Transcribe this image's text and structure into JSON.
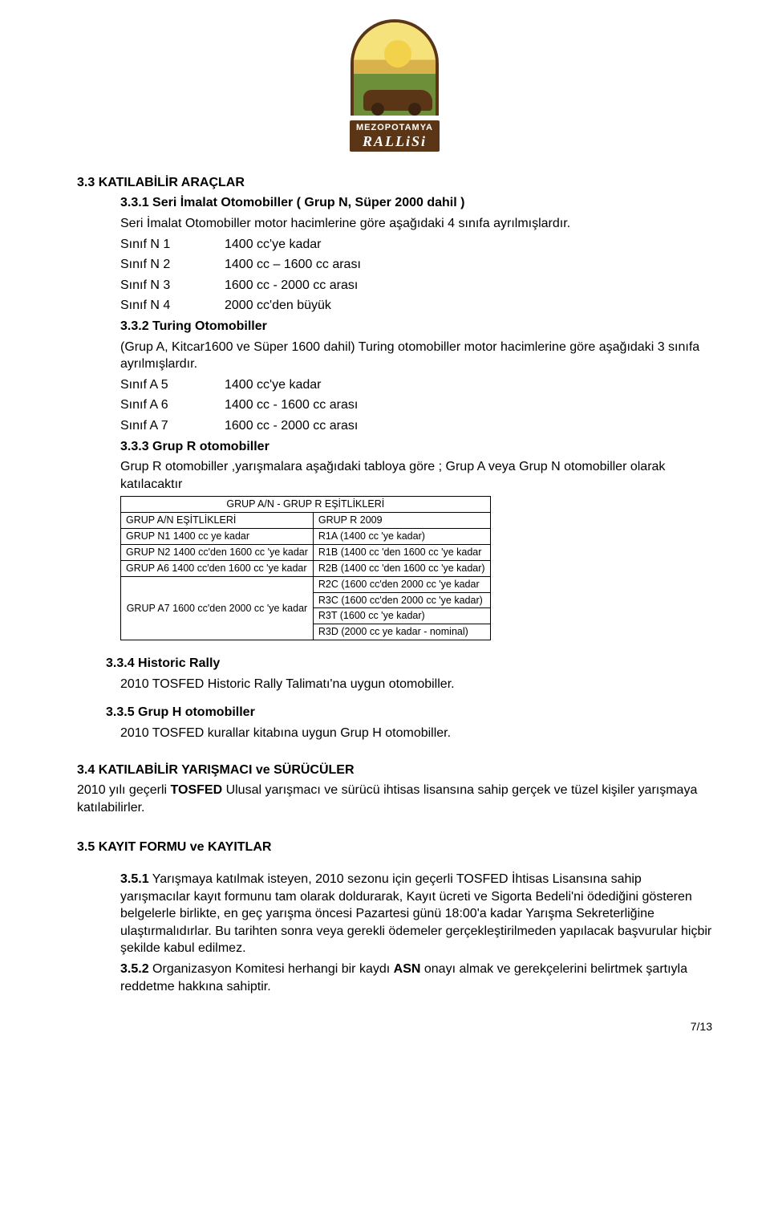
{
  "logo": {
    "brand_top": "MEZOPOTAMYA",
    "brand_bottom": "RALLiSi"
  },
  "s33": {
    "title": "3.3 KATILABİLİR ARAÇLAR",
    "s331_head": "3.3.1  Seri İmalat Otomobiller ( Grup N, Süper 2000 dahil )",
    "s331_lead": "Seri İmalat Otomobiller motor hacimlerine göre aşağıdaki 4 sınıfa ayrılmışlardır.",
    "rowsN": [
      {
        "c": "Sınıf N 1",
        "r": "1400 cc'ye kadar"
      },
      {
        "c": "Sınıf N 2",
        "r": "1400 cc – 1600 cc arası"
      },
      {
        "c": "Sınıf N 3",
        "r": "1600 cc -  2000 cc arası"
      },
      {
        "c": "Sınıf N 4",
        "r": "2000 cc'den büyük"
      }
    ],
    "s332_head": "3.3.2  Turing Otomobiller",
    "s332_lead": "(Grup A,  Kitcar1600 ve Süper 1600 dahil) Turing otomobiller motor hacimlerine göre aşağıdaki 3 sınıfa ayrılmışlardır.",
    "rowsA": [
      {
        "c": "Sınıf A 5",
        "r": "1400 cc'ye kadar"
      },
      {
        "c": "Sınıf A 6",
        "r": "1400 cc -  1600 cc arası"
      },
      {
        "c": "Sınıf A 7",
        "r": "1600 cc -  2000 cc arası"
      }
    ],
    "s333_head": "3.3.3  Grup R otomobiller",
    "s333_lead": "Grup R otomobiller ,yarışmalara aşağıdaki tabloya göre ; Grup A veya Grup N otomobiller olarak katılacaktır",
    "table": {
      "span_header": "GRUP A/N - GRUP R  EŞİTLİKLERİ",
      "left_header": "GRUP A/N EŞİTLİKLERİ",
      "right_header": "GRUP R 2009",
      "rows": [
        {
          "l": "GRUP N1 1400 cc ye kadar",
          "r": "R1A (1400 cc 'ye kadar)"
        },
        {
          "l": "GRUP N2 1400 cc'den 1600 cc 'ye kadar",
          "r": "R1B (1400 cc 'den 1600 cc 'ye kadar"
        },
        {
          "l": "GRUP A6 1400 cc'den 1600 cc 'ye kadar",
          "r": "R2B (1400 cc 'den 1600 cc 'ye kadar)"
        }
      ],
      "a7_left": "GRUP A7 1600 cc'den 2000 cc 'ye kadar",
      "a7_rights": [
        "R2C (1600 cc'den 2000 cc 'ye kadar",
        "R3C (1600 cc'den 2000 cc 'ye kadar)",
        "R3T (1600 cc 'ye kadar)",
        "R3D (2000 cc ye kadar - nominal)"
      ]
    },
    "s334_head": "3.3.4  Historic Rally",
    "s334_body": "2010 TOSFED Historic Rally Talimatı'na uygun otomobiller.",
    "s335_head": "3.3.5  Grup H otomobiller",
    "s335_body": "2010 TOSFED kurallar kitabına uygun Grup H otomobiller."
  },
  "s34": {
    "title": "3.4 KATILABİLİR YARIŞMACI ve SÜRÜCÜLER",
    "body_pre": "2010 yılı geçerli ",
    "body_bold": "TOSFED",
    "body_post": " Ulusal yarışmacı ve sürücü ihtisas lisansına sahip gerçek ve tüzel kişiler yarışmaya katılabilirler."
  },
  "s35": {
    "title": "3.5 KAYIT FORMU ve KAYITLAR",
    "s351_num": "3.5.1",
    "s351_body": " Yarışmaya katılmak isteyen, 2010 sezonu için geçerli TOSFED İhtisas Lisansına sahip yarışmacılar kayıt formunu tam olarak doldurarak, Kayıt ücreti ve Sigorta Bedeli'ni ödediğini gösteren belgelerle birlikte, en geç yarışma öncesi Pazartesi günü 18:00'a kadar Yarışma Sekreterliğine ulaştırmalıdırlar. Bu tarihten sonra veya gerekli ödemeler gerçekleştirilmeden yapılacak başvurular hiçbir şekilde kabul edilmez.",
    "s352_num": "3.5.2",
    "s352_pre": " Organizasyon Komitesi herhangi bir kaydı ",
    "s352_bold": "ASN",
    "s352_post": " onayı almak ve gerekçelerini belirtmek şartıyla reddetme hakkına sahiptir."
  },
  "page": "7/13"
}
